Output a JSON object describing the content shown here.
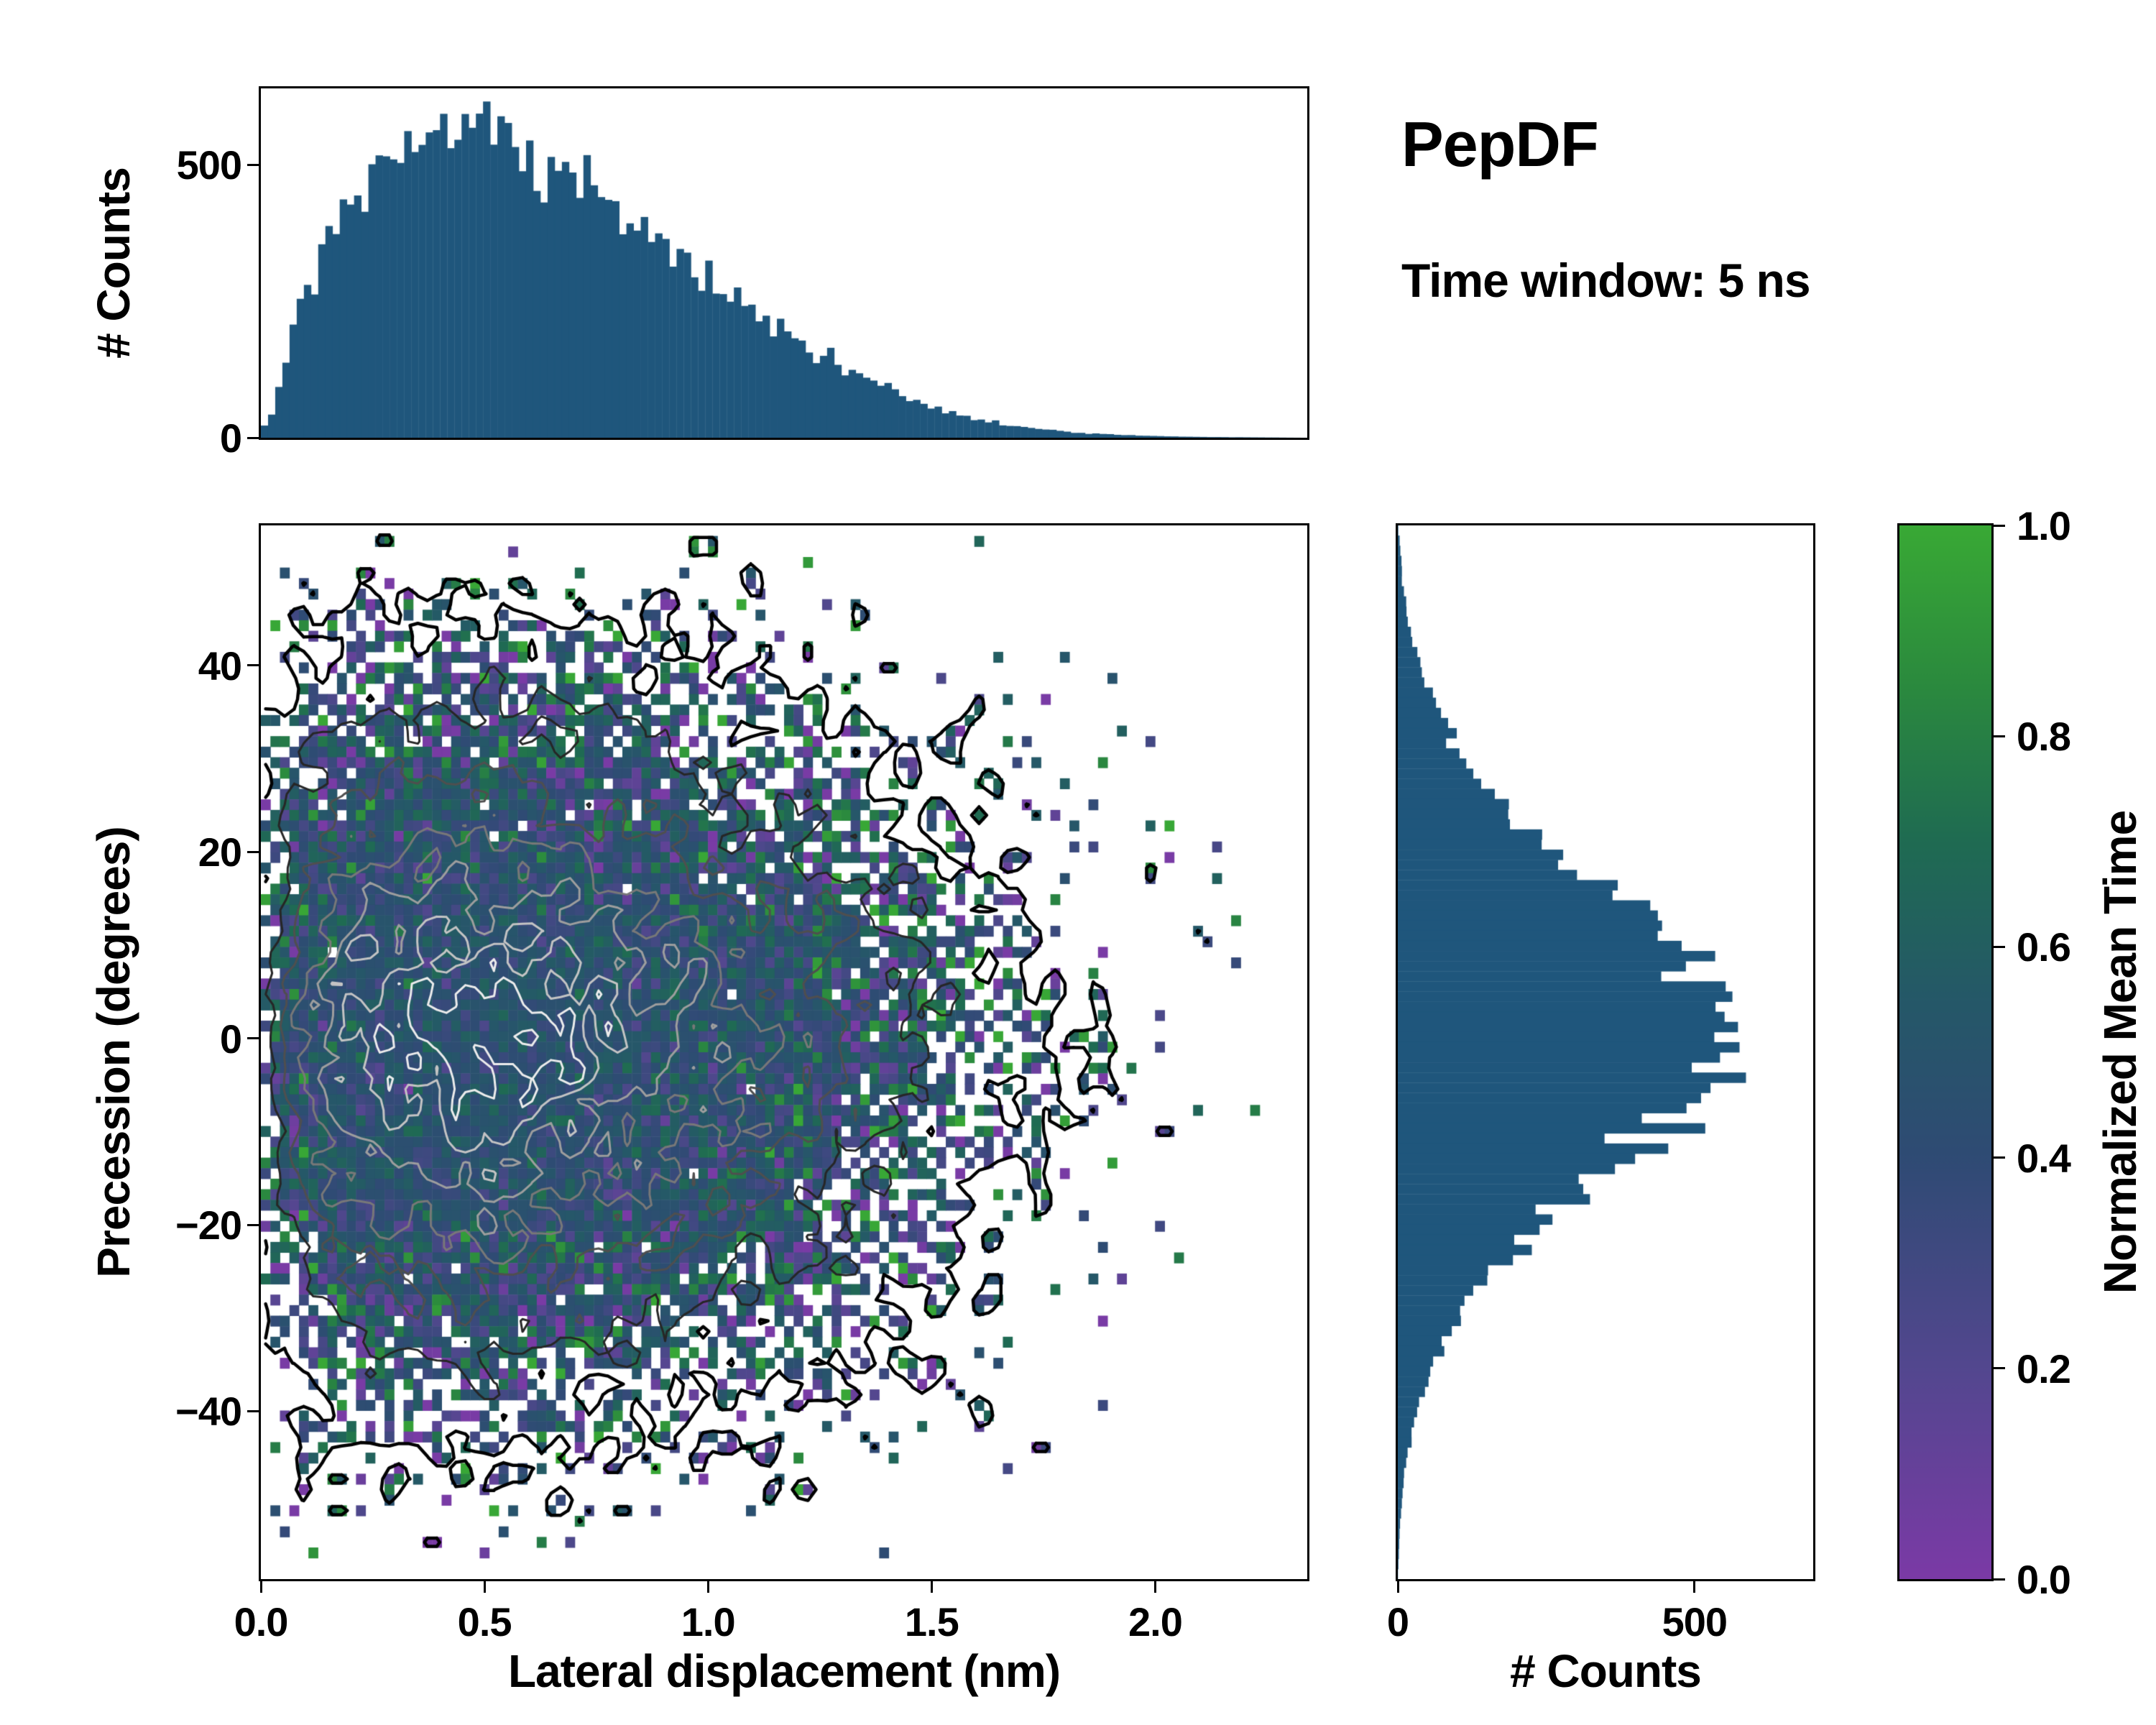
{
  "figure": {
    "title": "PepDF",
    "subtitle": "Time window: 5 ns"
  },
  "chart_data": {
    "type": "heatmap",
    "description": "2D histogram of precession vs lateral displacement colored by normalized mean time, with density contours and marginal count histograms",
    "x_axis": {
      "label": "Lateral displacement (nm)",
      "range": [
        0,
        2.34
      ],
      "ticks": [
        {
          "v": 0,
          "label": "0.0"
        },
        {
          "v": 0.5,
          "label": "0.5"
        },
        {
          "v": 1.0,
          "label": "1.0"
        },
        {
          "v": 1.5,
          "label": "1.5"
        },
        {
          "v": 2.0,
          "label": "2.0"
        }
      ]
    },
    "y_axis": {
      "label": "Precession (degrees)",
      "range": [
        -58,
        55
      ],
      "ticks": [
        {
          "v": 40,
          "label": "40"
        },
        {
          "v": 20,
          "label": "20"
        },
        {
          "v": 0,
          "label": "0"
        },
        {
          "v": -20,
          "label": "−20"
        },
        {
          "v": -40,
          "label": "−40"
        }
      ]
    },
    "top_hist": {
      "axis_label": "# Counts",
      "ymax": 640,
      "bins": 146,
      "color": "#1f567c",
      "yticks": [
        {
          "v": 0,
          "label": "0"
        },
        {
          "v": 500,
          "label": "500"
        }
      ],
      "envelope": [
        [
          0,
          10
        ],
        [
          0.03,
          60
        ],
        [
          0.06,
          150
        ],
        [
          0.1,
          260
        ],
        [
          0.15,
          360
        ],
        [
          0.2,
          430
        ],
        [
          0.25,
          475
        ],
        [
          0.3,
          505
        ],
        [
          0.35,
          530
        ],
        [
          0.4,
          555
        ],
        [
          0.45,
          575
        ],
        [
          0.5,
          565
        ],
        [
          0.55,
          545
        ],
        [
          0.6,
          525
        ],
        [
          0.65,
          500
        ],
        [
          0.7,
          470
        ],
        [
          0.75,
          440
        ],
        [
          0.8,
          410
        ],
        [
          0.85,
          380
        ],
        [
          0.9,
          350
        ],
        [
          0.95,
          320
        ],
        [
          1.0,
          290
        ],
        [
          1.05,
          262
        ],
        [
          1.1,
          235
        ],
        [
          1.15,
          210
        ],
        [
          1.2,
          185
        ],
        [
          1.25,
          160
        ],
        [
          1.3,
          135
        ],
        [
          1.35,
          112
        ],
        [
          1.4,
          90
        ],
        [
          1.45,
          72
        ],
        [
          1.5,
          56
        ],
        [
          1.55,
          44
        ],
        [
          1.6,
          34
        ],
        [
          1.65,
          26
        ],
        [
          1.7,
          20
        ],
        [
          1.75,
          15
        ],
        [
          1.8,
          11
        ],
        [
          1.85,
          8
        ],
        [
          1.9,
          6
        ],
        [
          2.0,
          3
        ],
        [
          2.1,
          1.5
        ],
        [
          2.2,
          0.8
        ],
        [
          2.34,
          0
        ]
      ]
    },
    "right_hist": {
      "axis_label": "# Counts",
      "xmax": 700,
      "bins": 104,
      "color": "#1f567c",
      "xticks": [
        {
          "v": 0,
          "label": "0"
        },
        {
          "v": 500,
          "label": "500"
        }
      ],
      "envelope": [
        [
          -58,
          0
        ],
        [
          -55,
          2
        ],
        [
          -52,
          4
        ],
        [
          -48,
          9
        ],
        [
          -45,
          15
        ],
        [
          -42,
          24
        ],
        [
          -38,
          42
        ],
        [
          -35,
          62
        ],
        [
          -32,
          85
        ],
        [
          -28,
          125
        ],
        [
          -25,
          165
        ],
        [
          -22,
          210
        ],
        [
          -18,
          280
        ],
        [
          -15,
          340
        ],
        [
          -12,
          405
        ],
        [
          -8,
          490
        ],
        [
          -5,
          545
        ],
        [
          -2,
          585
        ],
        [
          0,
          595
        ],
        [
          2,
          590
        ],
        [
          5,
          555
        ],
        [
          8,
          505
        ],
        [
          12,
          430
        ],
        [
          15,
          365
        ],
        [
          18,
          300
        ],
        [
          22,
          230
        ],
        [
          25,
          180
        ],
        [
          28,
          138
        ],
        [
          32,
          95
        ],
        [
          35,
          68
        ],
        [
          38,
          46
        ],
        [
          42,
          28
        ],
        [
          45,
          17
        ],
        [
          48,
          10
        ],
        [
          52,
          5
        ],
        [
          55,
          0
        ]
      ]
    },
    "heatmap": {
      "x_bins": 110,
      "y_bins": 100,
      "seed": 1234,
      "peak_expected_count": 14,
      "mean_time_center": 0.46,
      "mean_time_noise": 0.32,
      "mean_time_base_noise": 0.035
    },
    "contours": {
      "levels_fraction": [
        0.02,
        0.1,
        0.22,
        0.36,
        0.52,
        0.68,
        0.84
      ],
      "colors": [
        "#000000",
        "#262626",
        "#4f4f4f",
        "#787878",
        "#9e9e9e",
        "#c4c4c4",
        "#ececec"
      ],
      "widths": [
        4.5,
        3,
        3,
        3,
        3,
        3,
        3
      ]
    },
    "colorbar": {
      "label": "Normalized Mean Time",
      "range": [
        0,
        1
      ],
      "ticks": [
        {
          "v": 0,
          "label": "0.0"
        },
        {
          "v": 0.2,
          "label": "0.2"
        },
        {
          "v": 0.4,
          "label": "0.4"
        },
        {
          "v": 0.6,
          "label": "0.6"
        },
        {
          "v": 0.8,
          "label": "0.8"
        },
        {
          "v": 1.0,
          "label": "1.0"
        }
      ],
      "stops": [
        [
          0.0,
          "#7b3aa6"
        ],
        [
          0.2,
          "#53478f"
        ],
        [
          0.4,
          "#2f4b74"
        ],
        [
          0.55,
          "#255868"
        ],
        [
          0.7,
          "#1f6b52"
        ],
        [
          0.85,
          "#2b8a3e"
        ],
        [
          1.0,
          "#39a935"
        ]
      ]
    }
  }
}
